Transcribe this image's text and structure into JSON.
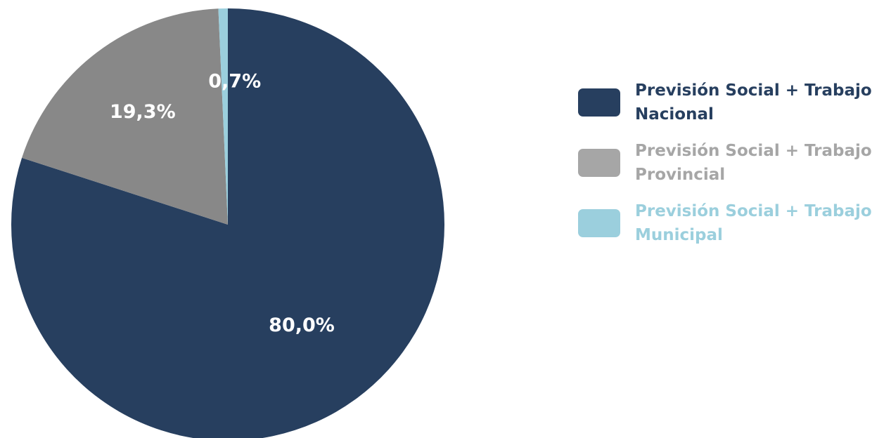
{
  "chart_data": {
    "type": "pie",
    "slices": [
      {
        "label": "Previsión Social + Trabajo Nacional",
        "value": 80.0,
        "display": "80,0%",
        "color": "#273f5f"
      },
      {
        "label": "Previsión Social + Trabajo Provincial",
        "value": 19.3,
        "display": "19,3%",
        "color": "#888888"
      },
      {
        "label": "Previsión Social + Trabajo Municipal",
        "value": 0.7,
        "display": "0,7%",
        "color": "#9bcfdd"
      }
    ],
    "start_angle": "top",
    "direction": "clockwise",
    "legend_position": "right"
  },
  "legend": {
    "items": [
      {
        "label": "Previsión Social + Trabajo Nacional",
        "color": "#273f5f",
        "text_color": "#273f5f"
      },
      {
        "label": "Previsión Social + Trabajo Provincial",
        "color": "#a6a6a6",
        "text_color": "#a6a6a6"
      },
      {
        "label": "Previsión Social + Trabajo Municipal",
        "color": "#9bcfdd",
        "text_color": "#9bcfdd"
      }
    ]
  }
}
